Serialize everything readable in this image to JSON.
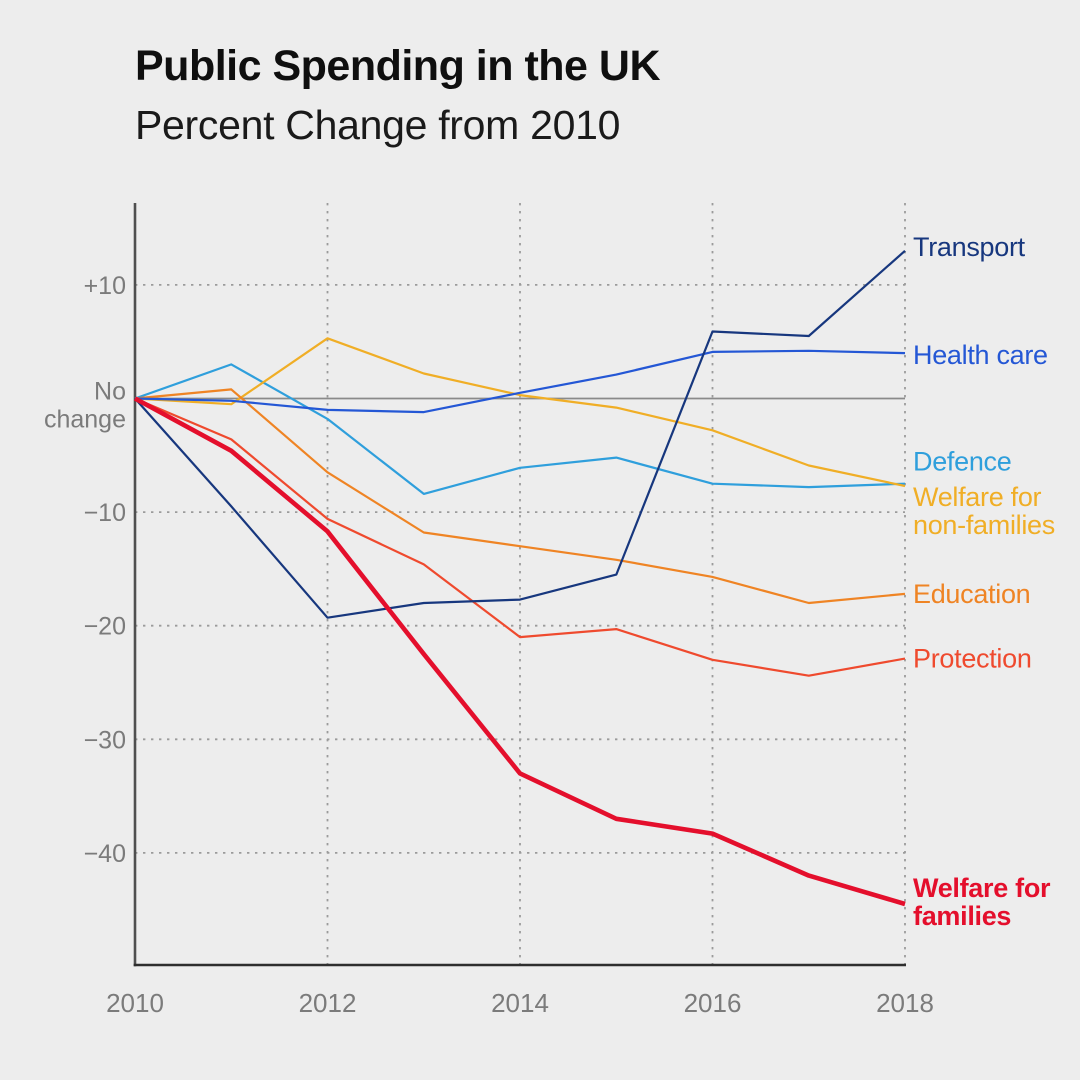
{
  "header": {
    "title": "Public Spending in the UK",
    "subtitle": "Percent Change from 2010"
  },
  "chart_data": {
    "type": "line",
    "title": "Public Spending in the UK",
    "subtitle": "Percent Change from 2010",
    "x": [
      2010,
      2011,
      2012,
      2013,
      2014,
      2015,
      2016,
      2017,
      2018
    ],
    "x_ticks": [
      "2010",
      "2012",
      "2014",
      "2016",
      "2018"
    ],
    "y_ticks": [
      {
        "value": 10,
        "label": "+10"
      },
      {
        "value": 0,
        "label": "No change",
        "lines": [
          "No",
          "change"
        ],
        "zero_line": true
      },
      {
        "value": -10,
        "label": "−10"
      },
      {
        "value": -20,
        "label": "−20"
      },
      {
        "value": -30,
        "label": "−30"
      },
      {
        "value": -40,
        "label": "−40"
      }
    ],
    "ylim": [
      -50,
      17
    ],
    "xlim": [
      2010,
      2018
    ],
    "grid": {
      "h_dotted_values": [
        10,
        -10,
        -20,
        -30,
        -40
      ],
      "v_dotted_years": [
        2012,
        2014,
        2016,
        2018
      ],
      "zero_line": true
    },
    "legend_position": "right-of-line-ends",
    "series": [
      {
        "name": "Defence",
        "color": "#2f9fdc",
        "bold": false,
        "label_lines": [
          "Defence"
        ],
        "label_dy": -22,
        "values": [
          0,
          3,
          -1.8,
          -8.4,
          -6.1,
          -5.2,
          -7.5,
          -7.8,
          -7.5
        ]
      },
      {
        "name": "Welfare for non-families",
        "color": "#f0ae26",
        "bold": false,
        "label_lines": [
          "Welfare for",
          "non-families"
        ],
        "label_dy": 25,
        "values": [
          0,
          -0.5,
          5.3,
          2.2,
          0.3,
          -0.8,
          -2.8,
          -5.9,
          -7.7
        ]
      },
      {
        "name": "Education",
        "color": "#ef8424",
        "bold": false,
        "label_lines": [
          "Education"
        ],
        "label_dy": 0,
        "values": [
          0,
          0.8,
          -6.5,
          -11.8,
          -13,
          -14.2,
          -15.7,
          -18,
          -17.2
        ]
      },
      {
        "name": "Protection",
        "color": "#ef4a2e",
        "bold": false,
        "label_lines": [
          "Protection"
        ],
        "label_dy": 0,
        "values": [
          0,
          -3.6,
          -10.6,
          -14.6,
          -21,
          -20.3,
          -23,
          -24.4,
          -22.9
        ]
      },
      {
        "name": "Health care",
        "color": "#2457d5",
        "bold": false,
        "label_lines": [
          "Health care"
        ],
        "label_dy": 2,
        "values": [
          0,
          -0.2,
          -1,
          -1.2,
          0.5,
          2.1,
          4.1,
          4.2,
          4
        ]
      },
      {
        "name": "Transport",
        "color": "#17377e",
        "bold": false,
        "label_lines": [
          "Transport"
        ],
        "label_dy": -4,
        "values": [
          0,
          -9.5,
          -19.3,
          -18,
          -17.7,
          -15.5,
          5.9,
          5.5,
          13
        ]
      },
      {
        "name": "Welfare for families",
        "color": "#e40f2c",
        "bold": true,
        "label_lines": [
          "Welfare for",
          "families"
        ],
        "label_dy": -2,
        "values": [
          0,
          -4.6,
          -11.7,
          -22.5,
          -33,
          -37,
          -38.3,
          -42,
          -44.5
        ]
      }
    ],
    "style": {
      "background": "#ededed",
      "axis_color": "#4f4f4f",
      "bottom_axis_color": "#2e2e2e",
      "grid_color": "#9b9b9b",
      "zero_line_color": "#8a8a8a",
      "tick_label_color": "#7b7b7b"
    }
  }
}
